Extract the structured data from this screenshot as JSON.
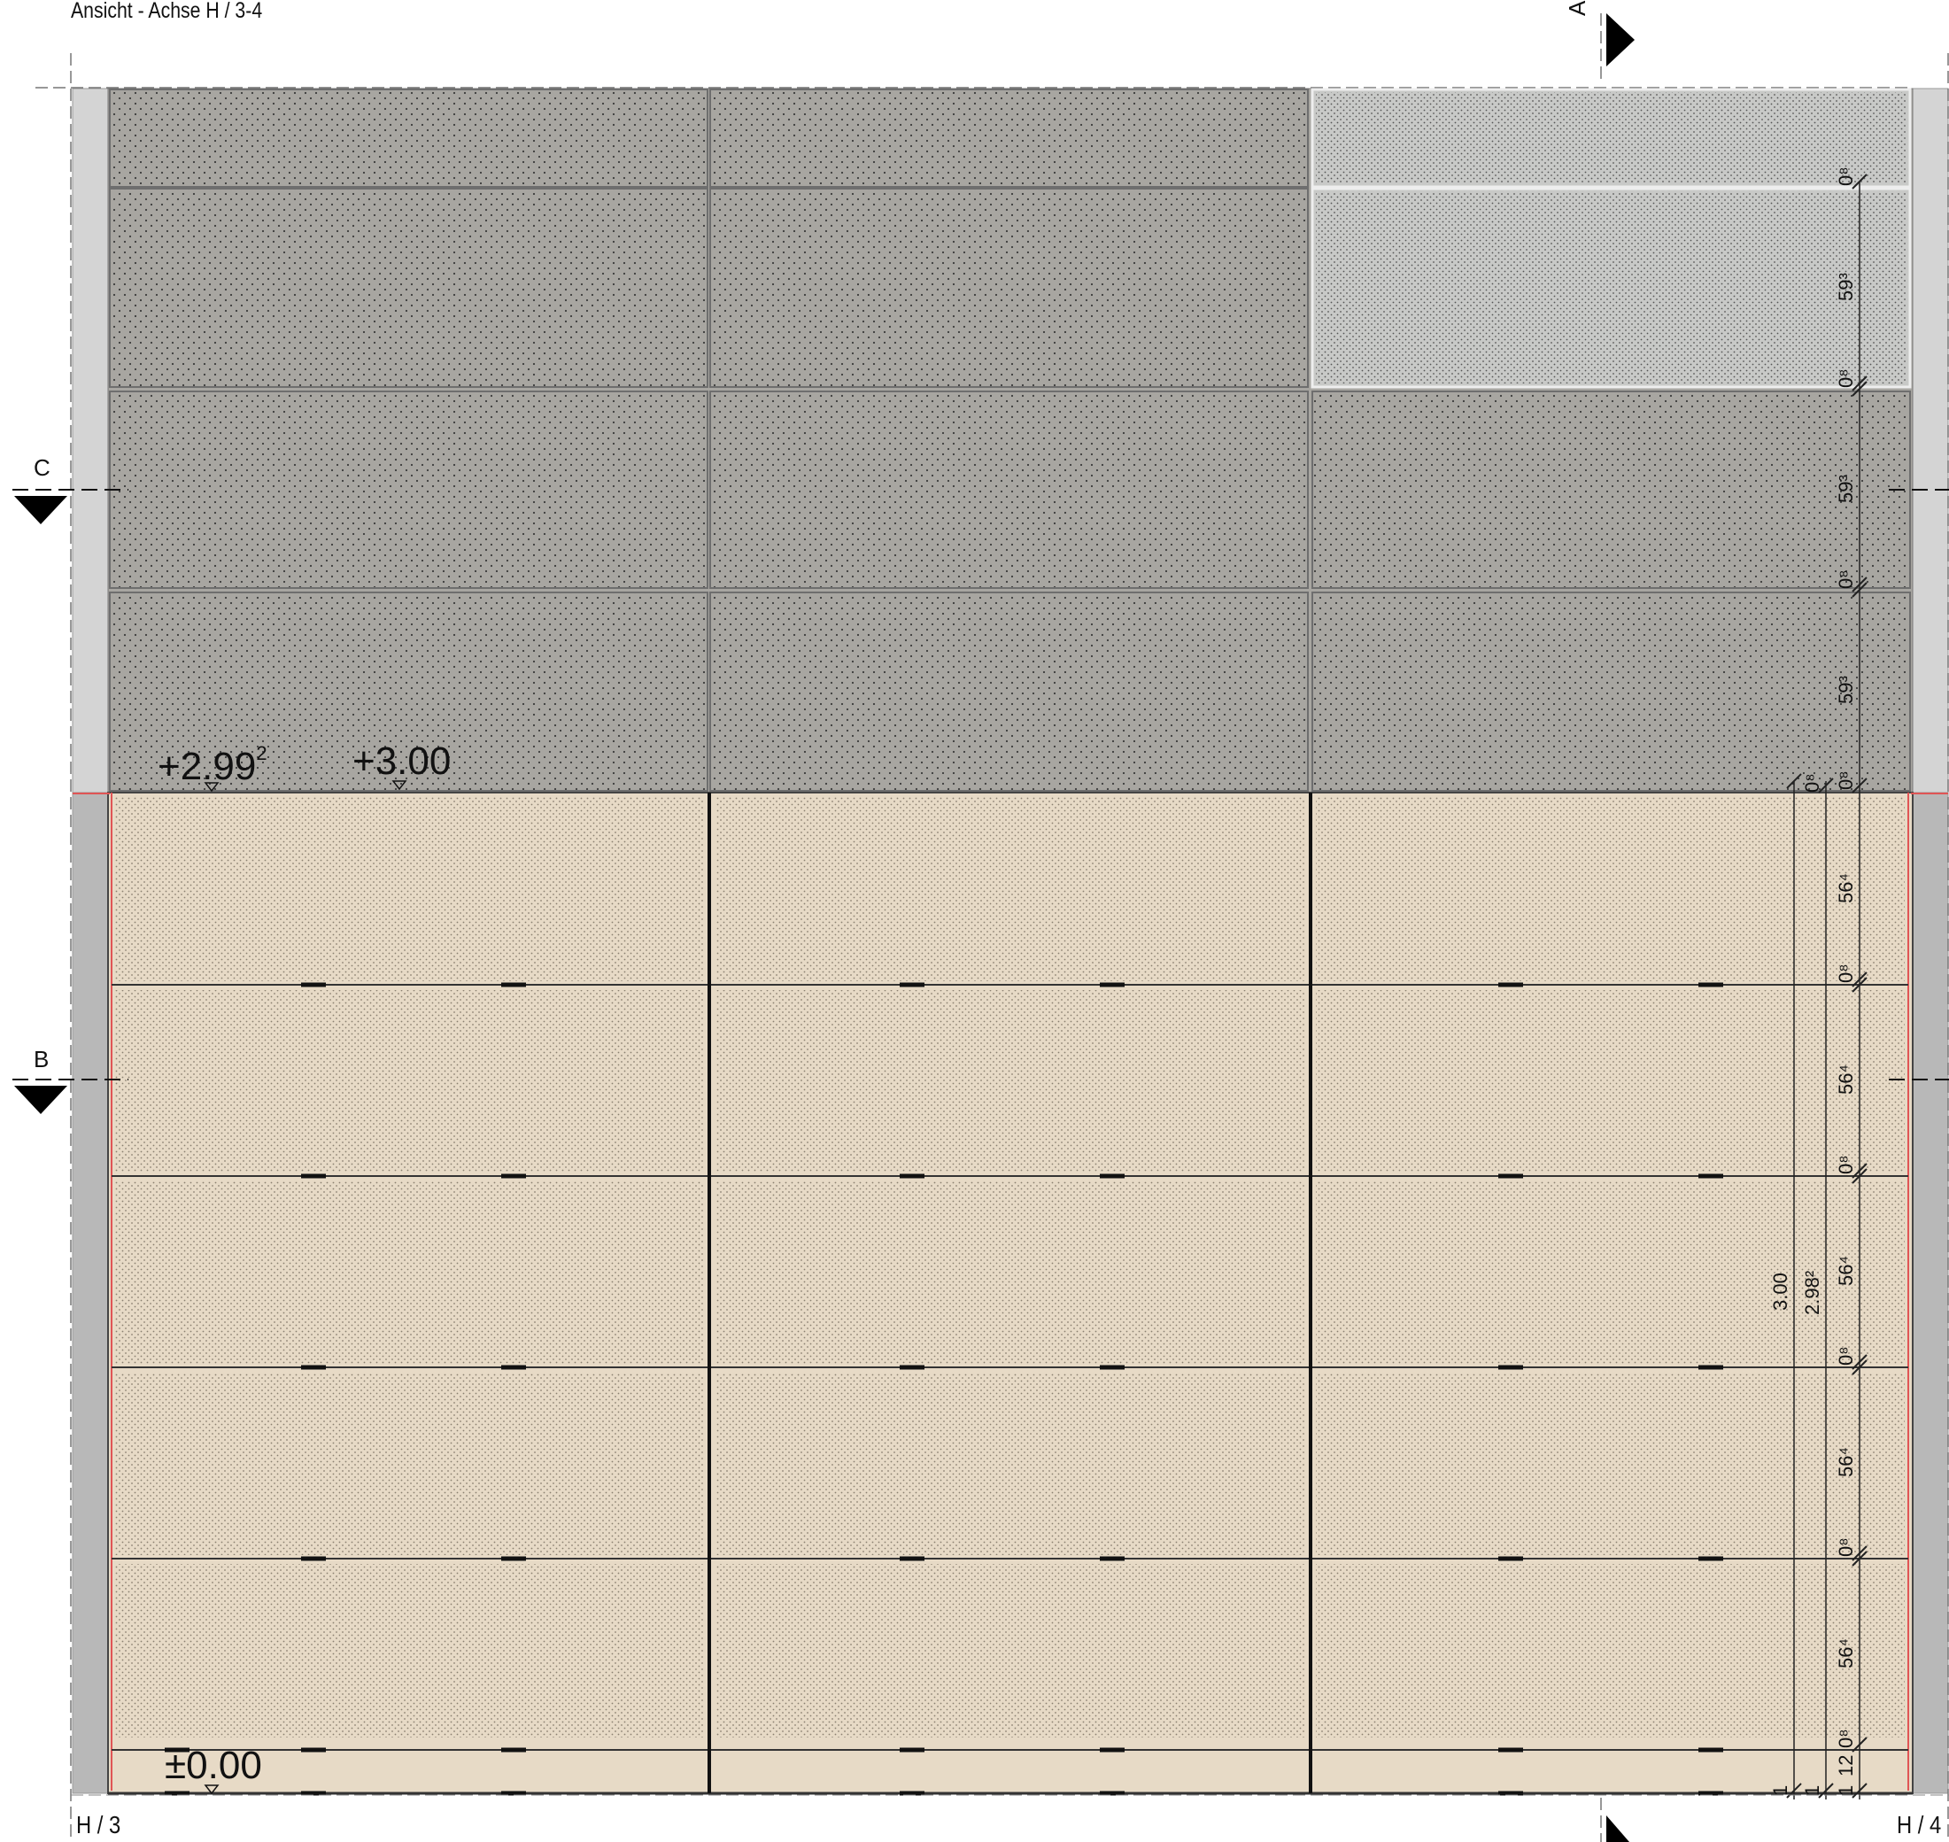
{
  "title": "Ansicht - Achse H / 3-4",
  "section_markers": [
    {
      "id": "section-a",
      "label": "A",
      "direction": "right"
    },
    {
      "id": "section-b",
      "label": "B",
      "direction": "down"
    },
    {
      "id": "section-c",
      "label": "C",
      "direction": "down"
    }
  ],
  "axis_labels": {
    "left": "H / 3",
    "right": "H / 4"
  },
  "elevations": {
    "top_of_wall": {
      "main": "+2.99",
      "sup": "2"
    },
    "top_level": "+3.00",
    "ground": "±0.00"
  },
  "colors": {
    "upper_panel": "#a8a6a1",
    "upper_panel_light": "#c8c9c7",
    "lower_panel": "#e7dac6",
    "side_strip_upper": "#d4d4d4",
    "side_strip_lower": "#b8b8b8",
    "red_edge": "#e05555"
  },
  "panels": {
    "columns": 3,
    "upper_rows": 4,
    "lower_rows": 5,
    "light_cells": [
      "0-2",
      "1-2"
    ]
  },
  "dimensions_upper": [
    "0⁸",
    "59³",
    "0⁸",
    "59³",
    "0⁸",
    "59³",
    "0⁸"
  ],
  "dimensions_lower": [
    "56⁴",
    "0⁸",
    "56⁴",
    "0⁸",
    "56⁴",
    "0⁸",
    "56⁴",
    "0⁸",
    "56⁴",
    "0⁸",
    "12",
    "1"
  ],
  "dimensions_total": [
    "3.00",
    "2.98²"
  ],
  "dimension_small": [
    "0⁸",
    "1"
  ]
}
